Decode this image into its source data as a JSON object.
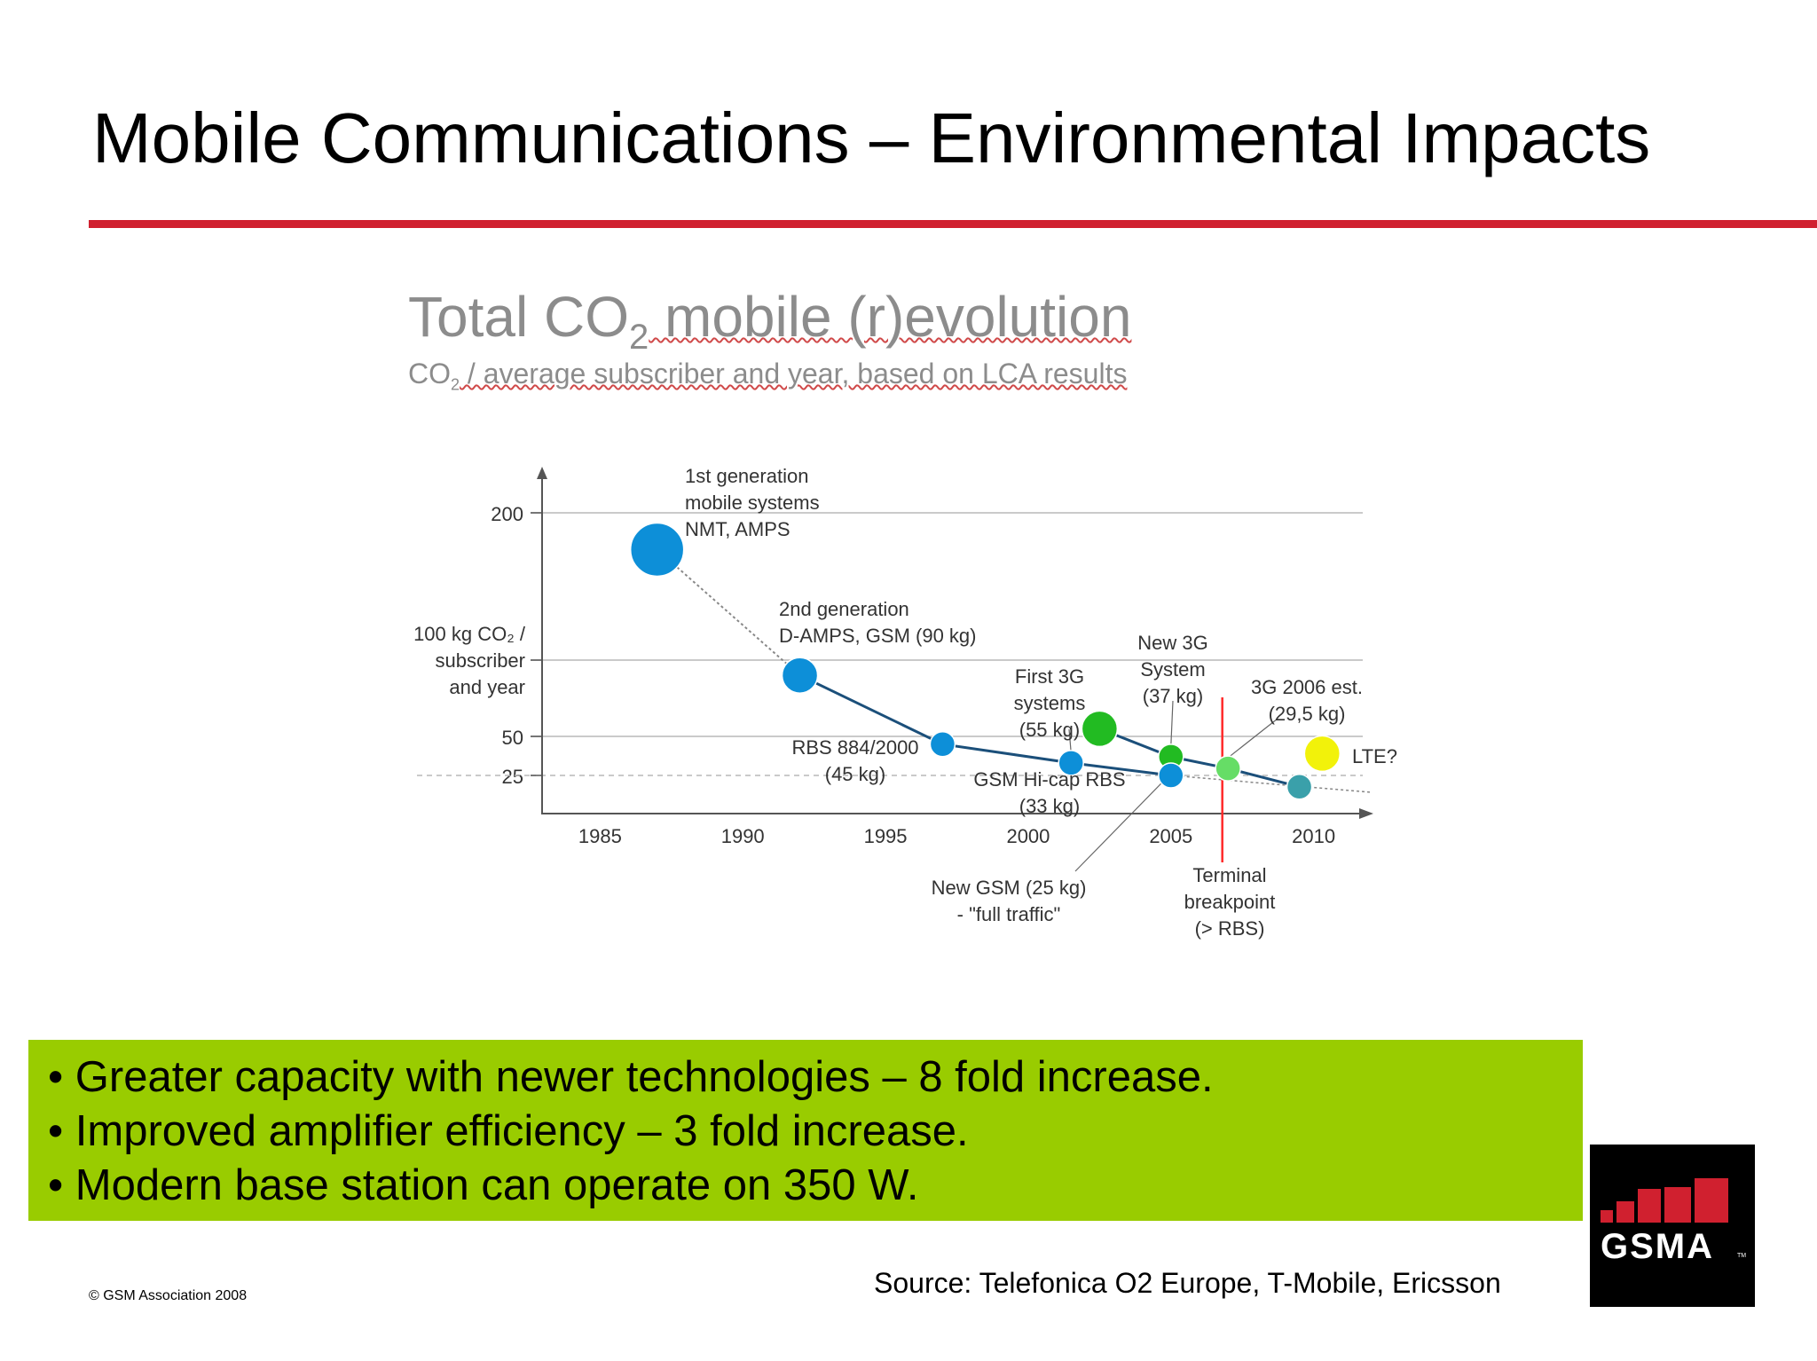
{
  "slide": {
    "title": "Mobile Communications – Environmental Impacts",
    "accent_rule_color": "#d0202f",
    "bullet_box_color": "#99cc00",
    "bullets": [
      "• Greater capacity with newer technologies – 8 fold increase.",
      "• Improved amplifier efficiency – 3 fold increase.",
      "• Modern base station can operate on 350 W."
    ],
    "copyright": "© GSM Association 2008",
    "source": "Source: Telefonica O2 Europe, T-Mobile, Ericsson",
    "logo": {
      "icon": "gsma-logo",
      "text": "GSMA",
      "tm": "TM",
      "bg_color": "#000000",
      "bar_color": "#d0202f"
    }
  },
  "chart_data": {
    "type": "scatter",
    "title_parts": {
      "pre": "Total CO",
      "sub": "2",
      "post": " mobile (r)evolution"
    },
    "subtitle_parts": {
      "pre": "CO",
      "sub": "2",
      "post": " / average subscriber and year, based on LCA results"
    },
    "x_ticks": [
      1985,
      1990,
      1995,
      2000,
      2005,
      2010
    ],
    "xlim": [
      1983,
      2012
    ],
    "y_ticks": [
      {
        "value": 200,
        "label": "200"
      },
      {
        "value": 100,
        "label": ""
      },
      {
        "value": 50,
        "label": "50"
      },
      {
        "value": 25,
        "label": "25"
      }
    ],
    "ylabel_lines": [
      "100 kg CO₂ /",
      "subscriber",
      "and year"
    ],
    "grid": true,
    "points": [
      {
        "x": 1987,
        "y": 175,
        "size": "xl",
        "color": "#0d8fd8",
        "label_lines": [
          "1st generation",
          "mobile systems",
          "NMT, AMPS"
        ]
      },
      {
        "x": 1992,
        "y": 90,
        "size": "l",
        "color": "#0d8fd8",
        "label_lines": [
          "2nd generation",
          "D-AMPS, GSM (90 kg)"
        ]
      },
      {
        "x": 1997,
        "y": 45,
        "size": "m",
        "color": "#0d8fd8",
        "label_lines": [
          "RBS 884/2000",
          "(45 kg)"
        ]
      },
      {
        "x": 2001.5,
        "y": 33,
        "size": "m",
        "color": "#0d8fd8",
        "label_lines": [
          "GSM Hi-cap RBS",
          "(33 kg)"
        ]
      },
      {
        "x": 2002.5,
        "y": 55,
        "size": "l",
        "color": "#22bb22",
        "label_lines": [
          "First 3G",
          "systems",
          "(55 kg)"
        ]
      },
      {
        "x": 2005,
        "y": 37,
        "size": "m",
        "color": "#22bb22",
        "label_lines": [
          "New 3G",
          "System",
          "(37 kg)"
        ]
      },
      {
        "x": 2005,
        "y": 25,
        "size": "m",
        "color": "#0d8fd8",
        "label_lines": [
          "New GSM (25 kg)",
          "- \"full traffic\""
        ]
      },
      {
        "x": 2007,
        "y": 29.5,
        "size": "m",
        "color": "#66dd66",
        "label_lines": [
          "3G 2006 est.",
          "(29,5 kg)"
        ]
      },
      {
        "x": 2009.5,
        "y": 20,
        "size": "m",
        "color": "#3aa0aa",
        "label_lines": []
      },
      {
        "x": 2010.3,
        "y": 39,
        "size": "l",
        "color": "#f2f20a",
        "label_lines": [
          "LTE?"
        ]
      }
    ],
    "terminal_breakpoint": {
      "x": 2006.8,
      "color": "#ff2a2a",
      "label_lines": [
        "Terminal",
        "breakpoint",
        "(> RBS)"
      ]
    }
  }
}
